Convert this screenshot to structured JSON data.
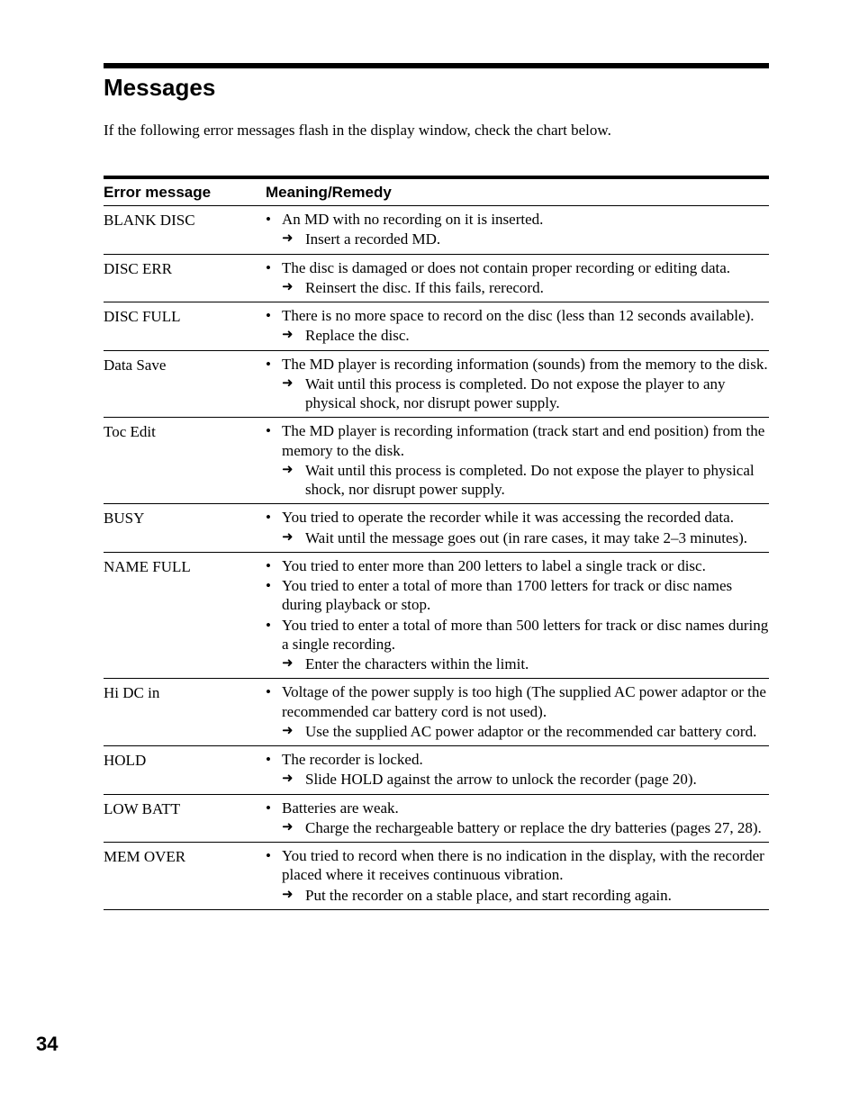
{
  "colors": {
    "text": "#000000",
    "background": "#ffffff",
    "rule": "#000000"
  },
  "title": "Messages",
  "intro": "If the following error messages flash in the display window, check the chart below.",
  "headers": {
    "col1": "Error message",
    "col2": "Meaning/Remedy"
  },
  "rows": [
    {
      "msg": "BLANK DISC",
      "bullets": [
        "An MD with no recording on it is inserted."
      ],
      "arrows": [
        "Insert a recorded MD."
      ]
    },
    {
      "msg": "DISC ERR",
      "bullets": [
        "The disc is damaged or does not contain proper recording or editing data."
      ],
      "arrows": [
        "Reinsert the disc. If this fails, rerecord."
      ]
    },
    {
      "msg": "DISC FULL",
      "bullets": [
        "There is no more space to record on the disc (less than 12 seconds available)."
      ],
      "arrows": [
        "Replace the disc."
      ]
    },
    {
      "msg": "Data Save",
      "bullets": [
        "The MD player is recording information (sounds) from the memory to the disk."
      ],
      "arrows": [
        "Wait until this process is completed. Do not expose the player to any physical shock, nor disrupt power supply."
      ]
    },
    {
      "msg": "Toc Edit",
      "bullets": [
        "The MD player is recording information (track start and end position) from the memory to the disk."
      ],
      "arrows": [
        "Wait until this process is completed. Do not expose the player to physical shock, nor disrupt power supply."
      ]
    },
    {
      "msg": "BUSY",
      "bullets": [
        "You tried to operate the recorder while it was accessing the recorded data."
      ],
      "arrows": [
        "Wait until the message goes out (in rare cases, it may take 2–3 minutes)."
      ]
    },
    {
      "msg": "NAME FULL",
      "bullets": [
        "You tried to enter more than 200 letters to label a single track or disc.",
        "You tried to enter a total of more than 1700 letters for track or disc names during playback or stop.",
        "You tried to enter a total of more than 500 letters for track or disc names during a single recording."
      ],
      "arrows": [
        "Enter the characters within the limit."
      ]
    },
    {
      "msg": "Hi DC in",
      "bullets": [
        "Voltage of the power supply is too high (The supplied AC power adaptor or the recommended car battery cord is not used)."
      ],
      "arrows": [
        "Use the supplied AC power adaptor or the recommended car battery cord."
      ]
    },
    {
      "msg": "HOLD",
      "bullets": [
        "The recorder is locked."
      ],
      "arrows": [
        "Slide HOLD against the arrow to unlock the recorder (page 20)."
      ]
    },
    {
      "msg": "LOW BATT",
      "bullets": [
        "Batteries are weak."
      ],
      "arrows": [
        "Charge the rechargeable battery or replace the dry batteries (pages 27, 28)."
      ]
    },
    {
      "msg": "MEM OVER",
      "bullets": [
        "You tried to record when there is no indication in the display, with the recorder placed where it receives continuous vibration."
      ],
      "arrows": [
        "Put the recorder on a stable place, and start recording again."
      ]
    }
  ],
  "page_number": "34"
}
